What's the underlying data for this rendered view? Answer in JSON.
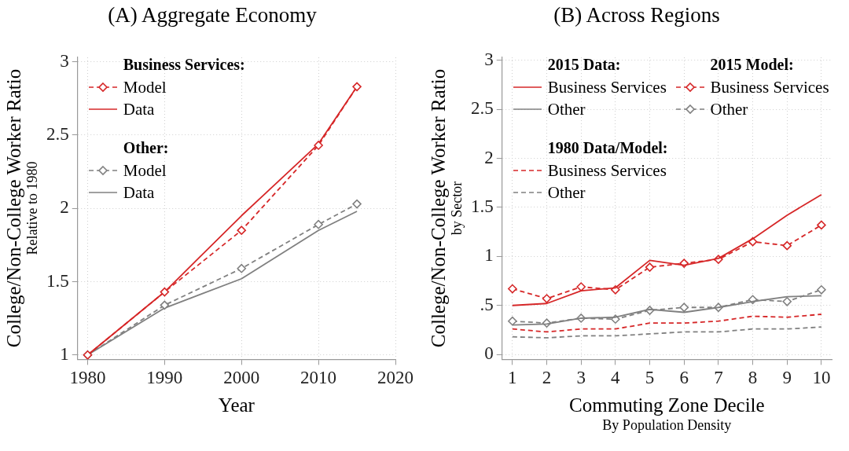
{
  "chart_data": [
    {
      "type": "line",
      "title": "(A) Aggregate Economy",
      "xlabel": "Year",
      "ylabel": "College/Non-College Worker Ratio\nRelative to 1980",
      "x": [
        1980,
        1990,
        2000,
        2010,
        2015
      ],
      "xlim": [
        1978.7,
        2020
      ],
      "xticks": [
        1980,
        1990,
        2000,
        2010,
        2020
      ],
      "ylim": [
        0.97,
        3.03
      ],
      "yticks": [
        1,
        1.5,
        2,
        2.5,
        3
      ],
      "grid": true,
      "legend": "top left",
      "annotations": [
        "Business Services:",
        "Other:"
      ],
      "series": [
        {
          "name": "Model",
          "color": "#d62728",
          "values": [
            1,
            1.43,
            1.85,
            2.43,
            2.83
          ],
          "line_style": "dashed",
          "marker": "diamond"
        },
        {
          "name": "Data",
          "color": "#d62728",
          "values": [
            1,
            1.43,
            1.95,
            2.44,
            2.83
          ],
          "line_style": "solid",
          "marker": "none"
        },
        {
          "name": "Model",
          "color": "#808080",
          "values": [
            1,
            1.34,
            1.59,
            1.89,
            2.03
          ],
          "line_style": "dashed",
          "marker": "diamond"
        },
        {
          "name": "Data",
          "color": "#808080",
          "values": [
            1,
            1.32,
            1.52,
            1.85,
            1.98
          ],
          "line_style": "solid",
          "marker": "none"
        }
      ]
    },
    {
      "type": "line",
      "title": "(B) Across Regions",
      "xlabel": "Commuting Zone Decile\nBy Population Density",
      "ylabel": "College/Non-College Worker Ratio\nby Sector",
      "x": [
        1,
        2,
        3,
        4,
        5,
        6,
        7,
        8,
        9,
        10
      ],
      "xlim": [
        0.7,
        10.3
      ],
      "xticks": [
        1,
        2,
        3,
        4,
        5,
        6,
        7,
        8,
        9,
        10
      ],
      "ylim": [
        -0.05,
        3.03
      ],
      "yticks": [
        0,
        {
          "value": 0.5,
          "label": ".5"
        },
        1,
        1.5,
        2,
        2.5,
        3
      ],
      "grid": true,
      "legend": "top left",
      "annotations": [
        "2015 Data:",
        "2015 Model:",
        "1980 Data/Model:"
      ],
      "series": [
        {
          "name": "Business Services",
          "color": "#d62728",
          "values": [
            0.5,
            0.52,
            0.65,
            0.68,
            0.96,
            0.91,
            0.98,
            1.18,
            1.42,
            1.63
          ],
          "line_style": "solid",
          "marker": "none"
        },
        {
          "name": "Other",
          "color": "#808080",
          "values": [
            0.3,
            0.31,
            0.37,
            0.38,
            0.46,
            0.43,
            0.48,
            0.54,
            0.59,
            0.6
          ],
          "line_style": "solid",
          "marker": "none"
        },
        {
          "name": "Business Services",
          "color": "#d62728",
          "values": [
            0.67,
            0.57,
            0.69,
            0.66,
            0.89,
            0.93,
            0.97,
            1.15,
            1.11,
            1.32
          ],
          "line_style": "dashed",
          "marker": "diamond"
        },
        {
          "name": "Other",
          "color": "#808080",
          "values": [
            0.34,
            0.32,
            0.37,
            0.36,
            0.45,
            0.48,
            0.48,
            0.56,
            0.54,
            0.66
          ],
          "line_style": "dashed",
          "marker": "diamond"
        },
        {
          "name": "Business Services",
          "color": "#d62728",
          "values": [
            0.26,
            0.23,
            0.26,
            0.26,
            0.32,
            0.32,
            0.34,
            0.39,
            0.38,
            0.41
          ],
          "line_style": "dashed",
          "marker": "none"
        },
        {
          "name": "Other",
          "color": "#808080",
          "values": [
            0.18,
            0.17,
            0.19,
            0.19,
            0.21,
            0.23,
            0.23,
            0.26,
            0.26,
            0.28
          ],
          "line_style": "dashed",
          "marker": "none"
        }
      ]
    }
  ]
}
